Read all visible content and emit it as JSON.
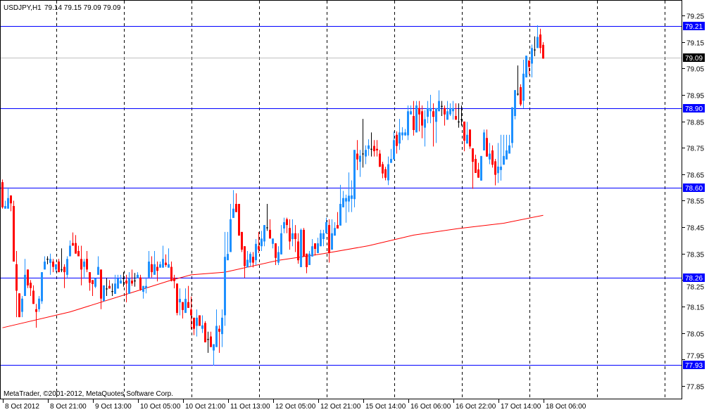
{
  "header": {
    "symbol": "USDJPY,H1",
    "ohlc": "79.14 79.15 79.09 79.09"
  },
  "copyright": "MetaTrader, ©2001-2012, MetaQuotes Software Corp.",
  "colors": {
    "bull": "#1e90ff",
    "bear": "#ff0000",
    "doji": "#000000",
    "hline": "#0000ff",
    "bid_line": "#c0c0c0",
    "ma": "#ff0000",
    "grid": "#000000"
  },
  "chart_data": {
    "type": "candlestick",
    "symbol": "USDJPY",
    "timeframe": "H1",
    "grid": true,
    "ylim": [
      77.8,
      79.31
    ],
    "y_ticks": [
      "79.25",
      "79.15",
      "79.05",
      "78.95",
      "78.85",
      "78.75",
      "78.65",
      "78.55",
      "78.45",
      "78.35",
      "78.25",
      "78.15",
      "78.05",
      "77.95",
      "77.85"
    ],
    "x_labels": [
      {
        "bar": 0,
        "label": "8 Oct 2012"
      },
      {
        "bar": 16,
        "label": "8 Oct 21:00"
      },
      {
        "bar": 32,
        "label": "9 Oct 13:00"
      },
      {
        "bar": 48,
        "label": "10 Oct 05:00"
      },
      {
        "bar": 64,
        "label": "10 Oct 21:00"
      },
      {
        "bar": 80,
        "label": "11 Oct 13:00"
      },
      {
        "bar": 96,
        "label": "12 Oct 05:00"
      },
      {
        "bar": 112,
        "label": "12 Oct 21:00"
      },
      {
        "bar": 128,
        "label": "15 Oct 14:00"
      },
      {
        "bar": 144,
        "label": "16 Oct 06:00"
      },
      {
        "bar": 160,
        "label": "16 Oct 22:00"
      },
      {
        "bar": 176,
        "label": "17 Oct 14:00"
      },
      {
        "bar": 192,
        "label": "18 Oct 06:00"
      }
    ],
    "horizontal_lines": [
      {
        "price": 79.21,
        "label": "79.21"
      },
      {
        "price": 78.9,
        "label": "78.90"
      },
      {
        "price": 78.6,
        "label": "78.60"
      },
      {
        "price": 78.26,
        "label": "78.26"
      },
      {
        "price": 77.93,
        "label": "77.93"
      }
    ],
    "bid": {
      "price": 79.09,
      "label": "79.09"
    },
    "moving_average": [
      [
        0,
        78.07
      ],
      [
        24,
        78.13
      ],
      [
        48,
        78.21
      ],
      [
        60,
        78.25
      ],
      [
        67,
        78.27
      ],
      [
        79,
        78.28
      ],
      [
        98,
        78.325
      ],
      [
        114,
        78.35
      ],
      [
        130,
        78.38
      ],
      [
        146,
        78.42
      ],
      [
        162,
        78.445
      ],
      [
        178,
        78.465
      ],
      [
        192,
        78.495
      ]
    ],
    "ohlc": [
      [
        78.62,
        78.63,
        78.52,
        78.525
      ],
      [
        78.52,
        78.55,
        78.52,
        78.53
      ],
      [
        78.52,
        78.6,
        78.52,
        78.56
      ],
      [
        78.57,
        78.57,
        78.51,
        78.54
      ],
      [
        78.53,
        78.55,
        78.32,
        78.32
      ],
      [
        78.31,
        78.36,
        78.11,
        78.21
      ],
      [
        78.2,
        78.2,
        78.11,
        78.11
      ],
      [
        78.13,
        78.19,
        78.11,
        78.18
      ],
      [
        78.19,
        78.33,
        78.19,
        78.27
      ],
      [
        78.29,
        78.29,
        78.22,
        78.23
      ],
      [
        78.24,
        78.25,
        78.19,
        78.22
      ],
      [
        78.21,
        78.23,
        78.16,
        78.16
      ],
      [
        78.14,
        78.16,
        78.07,
        78.13
      ],
      [
        78.14,
        78.19,
        78.13,
        78.18
      ],
      [
        78.17,
        78.28,
        78.16,
        78.28
      ],
      [
        78.29,
        78.34,
        78.29,
        78.32
      ],
      [
        78.33,
        78.34,
        78.31,
        78.33
      ],
      [
        78.315,
        78.35,
        78.27,
        78.33
      ],
      [
        78.32,
        78.33,
        78.28,
        78.3
      ],
      [
        78.29,
        78.31,
        78.28,
        78.31
      ],
      [
        78.32,
        78.33,
        78.28,
        78.28
      ],
      [
        78.29,
        78.37,
        78.28,
        78.29
      ],
      [
        78.3,
        78.31,
        78.22,
        78.28
      ],
      [
        78.27,
        78.34,
        78.26,
        78.33
      ],
      [
        78.34,
        78.4,
        78.34,
        78.38
      ],
      [
        78.39,
        78.43,
        78.38,
        78.38
      ],
      [
        78.39,
        78.42,
        78.35,
        78.35
      ],
      [
        78.36,
        78.38,
        78.34,
        78.34
      ],
      [
        78.33,
        78.38,
        78.23,
        78.29
      ],
      [
        78.3,
        78.33,
        78.26,
        78.32
      ],
      [
        78.33,
        78.36,
        78.28,
        78.29
      ],
      [
        78.28,
        78.28,
        78.21,
        78.24
      ],
      [
        78.25,
        78.25,
        78.19,
        78.235
      ],
      [
        78.225,
        78.257,
        78.22,
        78.257
      ],
      [
        78.27,
        78.34,
        78.27,
        78.3
      ],
      [
        78.29,
        78.29,
        78.14,
        78.18
      ],
      [
        78.17,
        78.23,
        78.17,
        78.23
      ],
      [
        78.218,
        78.258,
        78.19,
        78.218
      ],
      [
        78.228,
        78.25,
        78.218,
        78.218
      ],
      [
        78.208,
        78.237,
        78.19,
        78.208
      ],
      [
        78.198,
        78.27,
        78.198,
        78.237
      ],
      [
        78.218,
        78.27,
        78.218,
        78.257
      ],
      [
        78.237,
        78.27,
        78.237,
        78.248
      ],
      [
        78.257,
        78.28,
        78.225,
        78.257
      ],
      [
        78.248,
        78.27,
        78.166,
        78.237
      ],
      [
        78.198,
        78.28,
        78.198,
        78.257
      ],
      [
        78.248,
        78.29,
        78.228,
        78.237
      ],
      [
        78.248,
        78.277,
        78.225,
        78.248
      ],
      [
        78.257,
        78.28,
        78.257,
        78.27
      ],
      [
        78.26,
        78.27,
        78.21,
        78.215
      ],
      [
        78.206,
        78.228,
        78.18,
        78.228
      ],
      [
        78.22,
        78.26,
        78.2,
        78.228
      ],
      [
        78.26,
        78.36,
        78.26,
        78.32
      ],
      [
        78.31,
        78.34,
        78.26,
        78.28
      ],
      [
        78.27,
        78.36,
        78.27,
        78.31
      ],
      [
        78.3,
        78.32,
        78.245,
        78.285
      ],
      [
        78.297,
        78.32,
        78.297,
        78.31
      ],
      [
        78.297,
        78.38,
        78.297,
        78.33
      ],
      [
        78.316,
        78.347,
        78.3,
        78.307
      ],
      [
        78.297,
        78.37,
        78.297,
        78.31
      ],
      [
        78.3,
        78.32,
        78.245,
        78.247
      ],
      [
        78.259,
        78.27,
        78.219,
        78.246
      ],
      [
        78.237,
        78.237,
        78.117,
        78.126
      ],
      [
        78.166,
        78.219,
        78.117,
        78.179
      ],
      [
        78.167,
        78.167,
        78.105,
        78.137
      ],
      [
        78.126,
        78.219,
        78.126,
        78.179
      ],
      [
        78.167,
        78.228,
        78.145,
        78.145
      ],
      [
        78.139,
        78.188,
        78.064,
        78.117
      ],
      [
        78.108,
        78.108,
        78.042,
        78.066
      ],
      [
        78.077,
        78.139,
        78.037,
        78.108
      ],
      [
        78.117,
        78.117,
        78.077,
        78.077
      ],
      [
        78.066,
        78.117,
        78.05,
        78.079
      ],
      [
        78.088,
        78.095,
        78.015,
        78.015
      ],
      [
        78.027,
        78.055,
        77.975,
        78.027
      ],
      [
        78.037,
        78.055,
        77.997,
        77.997
      ],
      [
        77.984,
        78.008,
        77.927,
        78.008
      ],
      [
        77.997,
        78.139,
        77.997,
        78.077
      ],
      [
        78.066,
        78.079,
        77.975,
        78.055
      ],
      [
        78.046,
        78.139,
        77.997,
        78.108
      ],
      [
        78.117,
        78.432,
        78.077,
        78.338
      ],
      [
        78.325,
        78.432,
        78.325,
        78.349
      ],
      [
        78.356,
        78.538,
        78.356,
        78.48
      ],
      [
        78.485,
        78.59,
        78.485,
        78.52
      ],
      [
        78.538,
        78.578,
        78.507,
        78.507
      ],
      [
        78.538,
        78.538,
        78.418,
        78.418
      ],
      [
        78.432,
        78.432,
        78.356,
        78.365
      ],
      [
        78.378,
        78.378,
        78.259,
        78.303
      ],
      [
        78.298,
        78.36,
        78.298,
        78.327
      ],
      [
        78.316,
        78.356,
        78.303,
        78.349
      ],
      [
        78.338,
        78.356,
        78.298,
        78.316
      ],
      [
        78.325,
        78.405,
        78.307,
        78.387
      ],
      [
        78.378,
        78.432,
        78.352,
        78.365
      ],
      [
        78.378,
        78.436,
        78.36,
        78.407
      ],
      [
        78.396,
        78.458,
        78.378,
        78.458
      ],
      [
        78.449,
        78.538,
        78.436,
        78.449
      ],
      [
        78.44,
        78.48,
        78.407,
        78.407
      ],
      [
        78.387,
        78.407,
        78.37,
        78.407
      ],
      [
        78.389,
        78.389,
        78.307,
        78.334
      ],
      [
        78.316,
        78.378,
        78.307,
        78.356
      ],
      [
        78.347,
        78.458,
        78.347,
        78.427
      ],
      [
        78.445,
        78.486,
        78.427,
        78.469
      ],
      [
        78.48,
        78.486,
        78.427,
        78.458
      ],
      [
        78.447,
        78.48,
        78.365,
        78.396
      ],
      [
        78.405,
        78.48,
        78.378,
        78.427
      ],
      [
        78.427,
        78.458,
        78.356,
        78.405
      ],
      [
        78.396,
        78.427,
        78.312,
        78.325
      ],
      [
        78.299,
        78.445,
        78.299,
        78.44
      ],
      [
        78.44,
        78.447,
        78.339,
        78.339
      ],
      [
        78.35,
        78.35,
        78.276,
        78.299
      ],
      [
        78.307,
        78.36,
        78.307,
        78.35
      ],
      [
        78.339,
        78.405,
        78.339,
        78.378
      ],
      [
        78.389,
        78.389,
        78.343,
        78.368
      ],
      [
        78.352,
        78.41,
        78.352,
        78.389
      ],
      [
        78.378,
        78.44,
        78.378,
        78.427
      ],
      [
        78.405,
        78.44,
        78.378,
        78.427
      ],
      [
        78.427,
        78.486,
        78.427,
        78.469
      ],
      [
        78.458,
        78.48,
        78.316,
        78.352
      ],
      [
        78.365,
        78.48,
        78.365,
        78.427
      ],
      [
        78.418,
        78.469,
        78.418,
        78.447
      ],
      [
        78.458,
        78.507,
        78.445,
        78.445
      ],
      [
        78.456,
        78.61,
        78.456,
        78.538
      ],
      [
        78.525,
        78.587,
        78.525,
        78.56
      ],
      [
        78.547,
        78.573,
        78.467,
        78.56
      ],
      [
        78.547,
        78.657,
        78.507,
        78.569
      ],
      [
        78.557,
        78.627,
        78.507,
        78.57
      ],
      [
        78.556,
        78.742,
        78.525,
        78.742
      ],
      [
        78.728,
        78.779,
        78.666,
        78.706
      ],
      [
        78.697,
        78.742,
        78.64,
        78.72
      ],
      [
        78.728,
        78.859,
        78.675,
        78.728
      ],
      [
        78.717,
        78.759,
        78.688,
        78.742
      ],
      [
        78.746,
        78.782,
        78.72,
        78.759
      ],
      [
        78.746,
        78.808,
        78.717,
        78.746
      ],
      [
        78.757,
        78.779,
        78.717,
        78.737
      ],
      [
        78.746,
        78.779,
        78.717,
        78.74
      ],
      [
        78.728,
        78.742,
        78.678,
        78.678
      ],
      [
        78.688,
        78.697,
        78.635,
        78.653
      ],
      [
        78.669,
        78.678,
        78.627,
        78.637
      ],
      [
        78.627,
        78.717,
        78.609,
        78.688
      ],
      [
        78.693,
        78.746,
        78.693,
        78.708
      ],
      [
        78.706,
        78.812,
        78.706,
        78.779
      ],
      [
        78.799,
        78.812,
        78.728,
        78.757
      ],
      [
        78.766,
        78.859,
        78.742,
        78.808
      ],
      [
        78.797,
        78.828,
        78.779,
        78.808
      ],
      [
        78.797,
        78.821,
        78.795,
        78.808
      ],
      [
        78.797,
        78.91,
        78.779,
        78.888
      ],
      [
        78.876,
        78.91,
        78.876,
        78.888
      ],
      [
        78.87,
        78.927,
        78.796,
        78.817
      ],
      [
        78.808,
        78.927,
        78.808,
        78.91
      ],
      [
        78.9,
        78.927,
        78.812,
        78.876
      ],
      [
        78.888,
        78.91,
        78.786,
        78.834
      ],
      [
        78.826,
        78.892,
        78.755,
        78.858
      ],
      [
        78.867,
        78.927,
        78.843,
        78.9
      ],
      [
        78.888,
        78.95,
        78.843,
        78.9
      ],
      [
        78.888,
        78.918,
        78.755,
        78.867
      ],
      [
        78.848,
        78.9,
        78.768,
        78.9
      ],
      [
        78.888,
        78.967,
        78.888,
        78.927
      ],
      [
        78.908,
        78.927,
        78.87,
        78.908
      ],
      [
        78.9,
        78.91,
        78.834,
        78.876
      ],
      [
        78.856,
        78.927,
        78.856,
        78.888
      ],
      [
        78.876,
        78.918,
        78.87,
        78.9
      ],
      [
        78.888,
        78.927,
        78.856,
        78.9
      ],
      [
        78.87,
        78.918,
        78.856,
        78.856
      ],
      [
        78.849,
        78.918,
        78.826,
        78.849
      ],
      [
        78.858,
        78.91,
        78.834,
        78.858
      ],
      [
        78.849,
        78.849,
        78.737,
        78.777
      ],
      [
        78.766,
        78.848,
        78.766,
        78.799
      ],
      [
        78.819,
        78.819,
        78.746,
        78.755
      ],
      [
        78.748,
        78.748,
        78.595,
        78.697
      ],
      [
        78.708,
        78.724,
        78.655,
        78.655
      ],
      [
        78.668,
        78.693,
        78.637,
        78.637
      ],
      [
        78.626,
        78.719,
        78.626,
        78.719
      ],
      [
        78.74,
        78.819,
        78.74,
        78.808
      ],
      [
        78.787,
        78.819,
        78.716,
        78.717
      ],
      [
        78.706,
        78.768,
        78.688,
        78.728
      ],
      [
        78.74,
        78.759,
        78.675,
        78.686
      ],
      [
        78.699,
        78.708,
        78.608,
        78.648
      ],
      [
        78.654,
        78.768,
        78.617,
        78.679
      ],
      [
        78.666,
        78.799,
        78.626,
        78.679
      ],
      [
        78.686,
        78.799,
        78.686,
        78.719
      ],
      [
        78.706,
        78.799,
        78.706,
        78.74
      ],
      [
        78.728,
        78.799,
        78.728,
        78.759
      ],
      [
        78.768,
        78.903,
        78.75,
        78.903
      ],
      [
        78.87,
        78.968,
        78.857,
        78.968
      ],
      [
        78.954,
        79.061,
        78.947,
        78.954
      ],
      [
        78.979,
        78.99,
        78.908,
        78.914
      ],
      [
        78.928,
        79.083,
        78.9,
        79.03
      ],
      [
        79.016,
        79.098,
        79.016,
        79.098
      ],
      [
        79.08,
        79.08,
        79.027,
        79.056
      ],
      [
        79.068,
        79.14,
        79.016,
        79.127
      ],
      [
        79.121,
        79.171,
        79.096,
        79.121
      ],
      [
        79.127,
        79.213,
        79.127,
        79.169
      ],
      [
        79.178,
        79.2,
        79.107,
        79.127
      ],
      [
        79.139,
        79.149,
        79.087,
        79.087
      ]
    ]
  }
}
